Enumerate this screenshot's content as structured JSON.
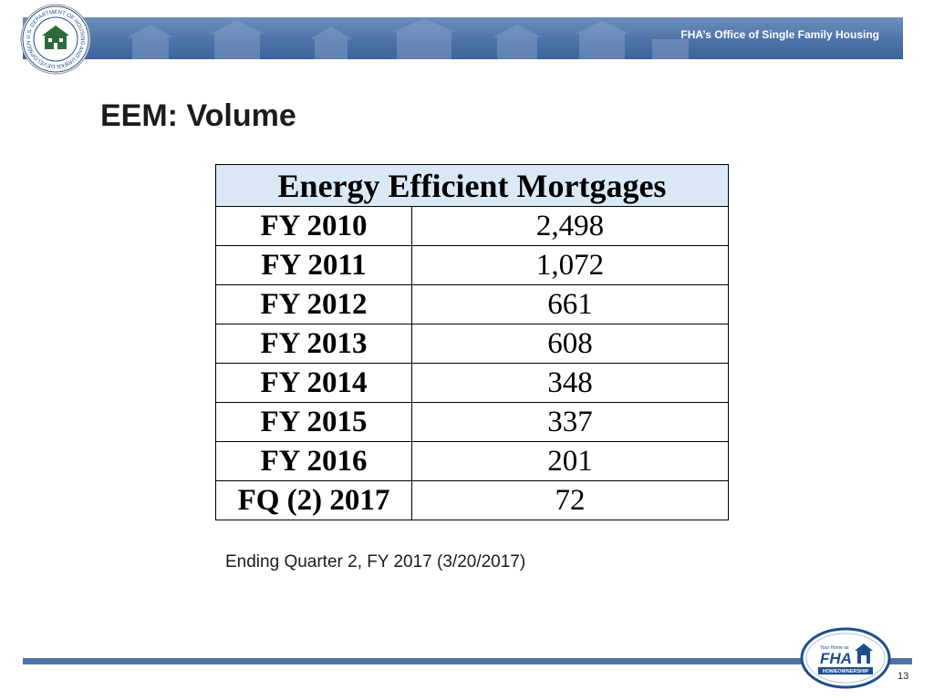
{
  "header": {
    "seal_text": "U.S. DEPARTMENT OF HOUSING AND URBAN DEVELOPMENT",
    "org_label": "FHA’s Office of Single Family Housing"
  },
  "slide": {
    "title": "EEM: Volume",
    "table": {
      "header": "Energy Efficient Mortgages",
      "rows": [
        {
          "year": "FY 2010",
          "value": "2,498"
        },
        {
          "year": "FY 2011",
          "value": "1,072"
        },
        {
          "year": "FY 2012",
          "value": "661"
        },
        {
          "year": "FY 2013",
          "value": "608"
        },
        {
          "year": "FY 2014",
          "value": "348"
        },
        {
          "year": "FY 2015",
          "value": "337"
        },
        {
          "year": "FY 2016",
          "value": "201"
        },
        {
          "year": "FQ (2) 2017",
          "value": "72"
        }
      ]
    },
    "footnote": "Ending Quarter 2, FY 2017 (3/20/2017)"
  },
  "footer": {
    "logo_small": "Your Home as",
    "logo_main": "FHA",
    "logo_sub": "HOMEOWNERSHIP",
    "page_number": "13"
  },
  "colors": {
    "banner": "#4e73a8",
    "table_header_bg": "#dbe8f6",
    "footer_bar": "#4e73a8"
  }
}
